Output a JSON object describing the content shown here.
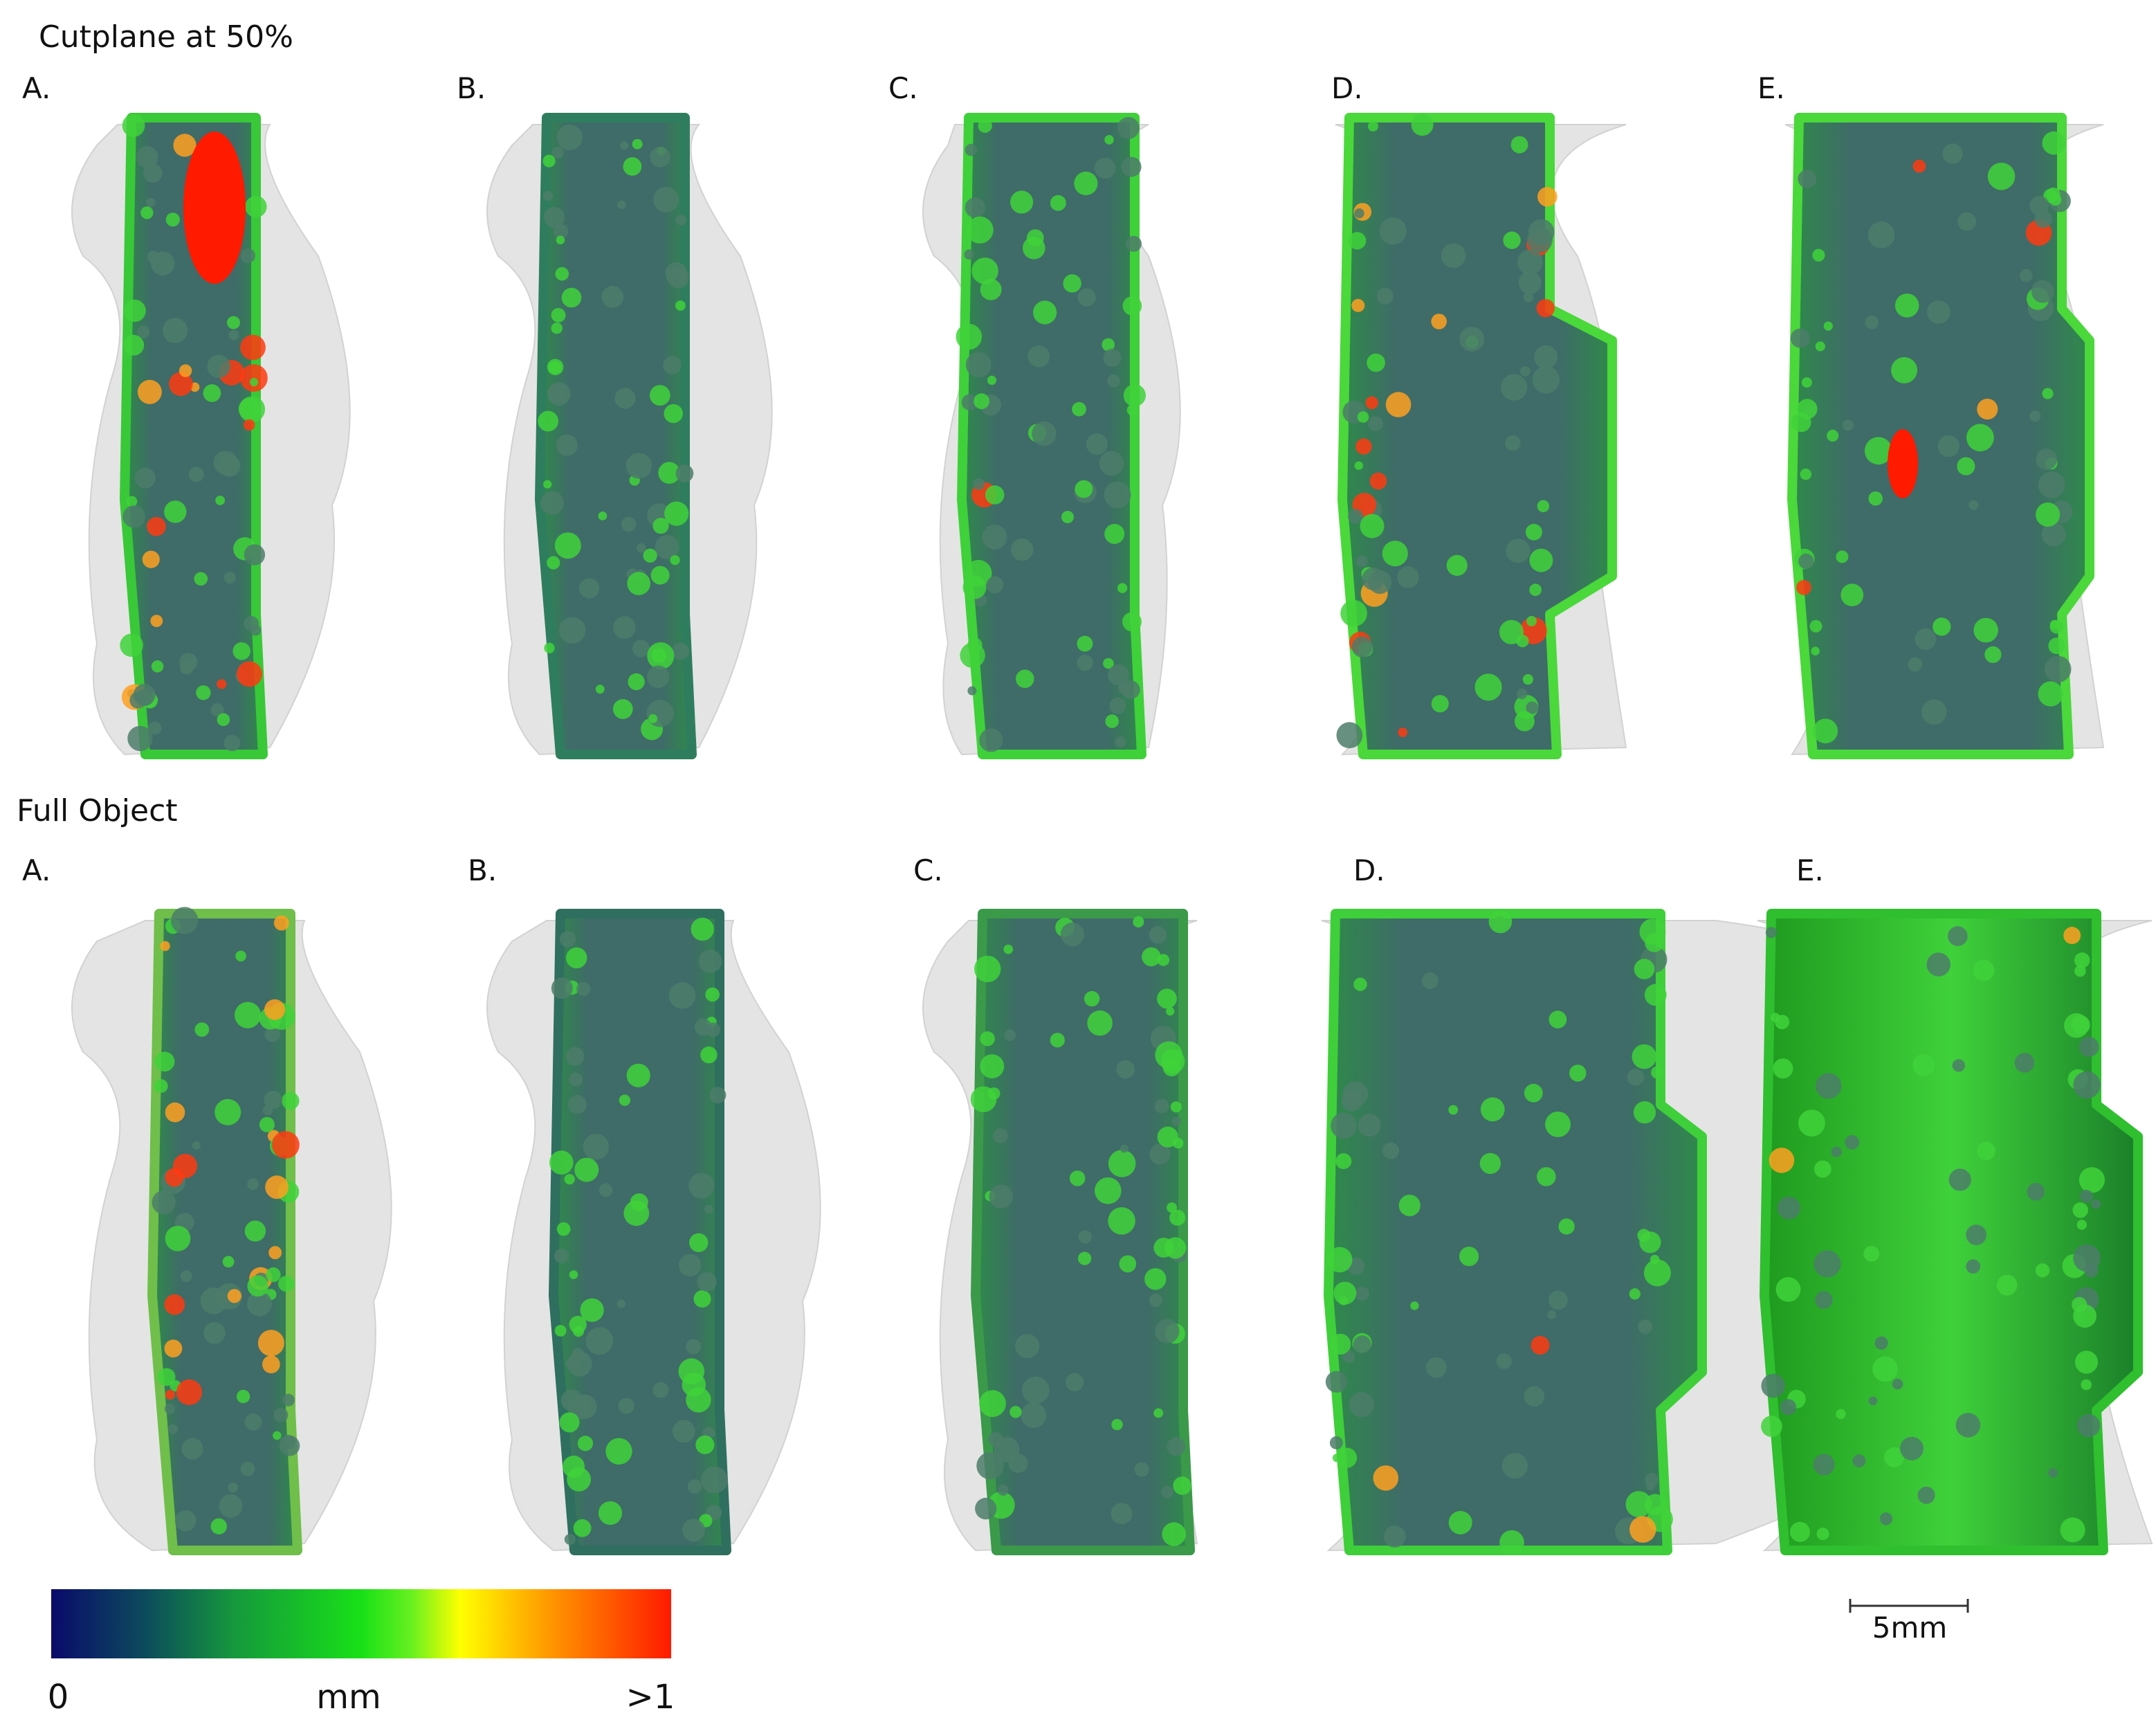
{
  "sections": [
    {
      "title": "Cutplane at 50%",
      "panels": [
        "A.",
        "B.",
        "C.",
        "D.",
        "E."
      ]
    },
    {
      "title": "Full Object",
      "panels": [
        "A.",
        "B.",
        "C.",
        "D.",
        "E."
      ]
    }
  ],
  "colorbar": {
    "min_label": "0",
    "unit": "mm",
    "max_label": ">1"
  },
  "scale_bar": {
    "label": "5mm"
  }
}
